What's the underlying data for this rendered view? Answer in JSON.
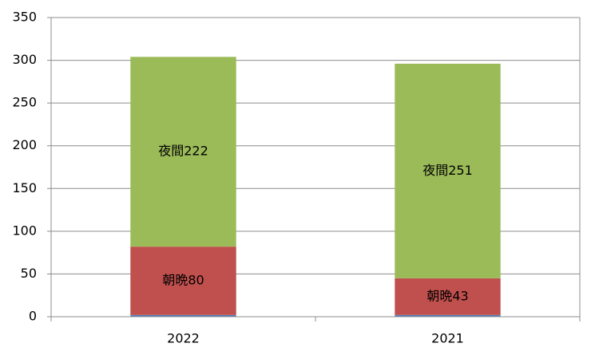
{
  "chart_data": {
    "type": "stacked_bar",
    "categories": [
      "2022",
      "2021"
    ],
    "series": [
      {
        "color": "#4f81bd",
        "values": [
          2,
          2
        ]
      },
      {
        "name": "朝晩",
        "color": "#c0504d",
        "values": [
          80,
          43
        ],
        "value_labels": [
          "朝晩80",
          "朝晩43"
        ]
      },
      {
        "name": "夜間",
        "color": "#9bbb59",
        "values": [
          222,
          251
        ],
        "value_labels": [
          "夜間222",
          "夜間251"
        ]
      }
    ],
    "ylim": [
      0,
      350
    ],
    "yticks": [
      0,
      50,
      100,
      150,
      200,
      250,
      300,
      350
    ],
    "grid": true
  }
}
